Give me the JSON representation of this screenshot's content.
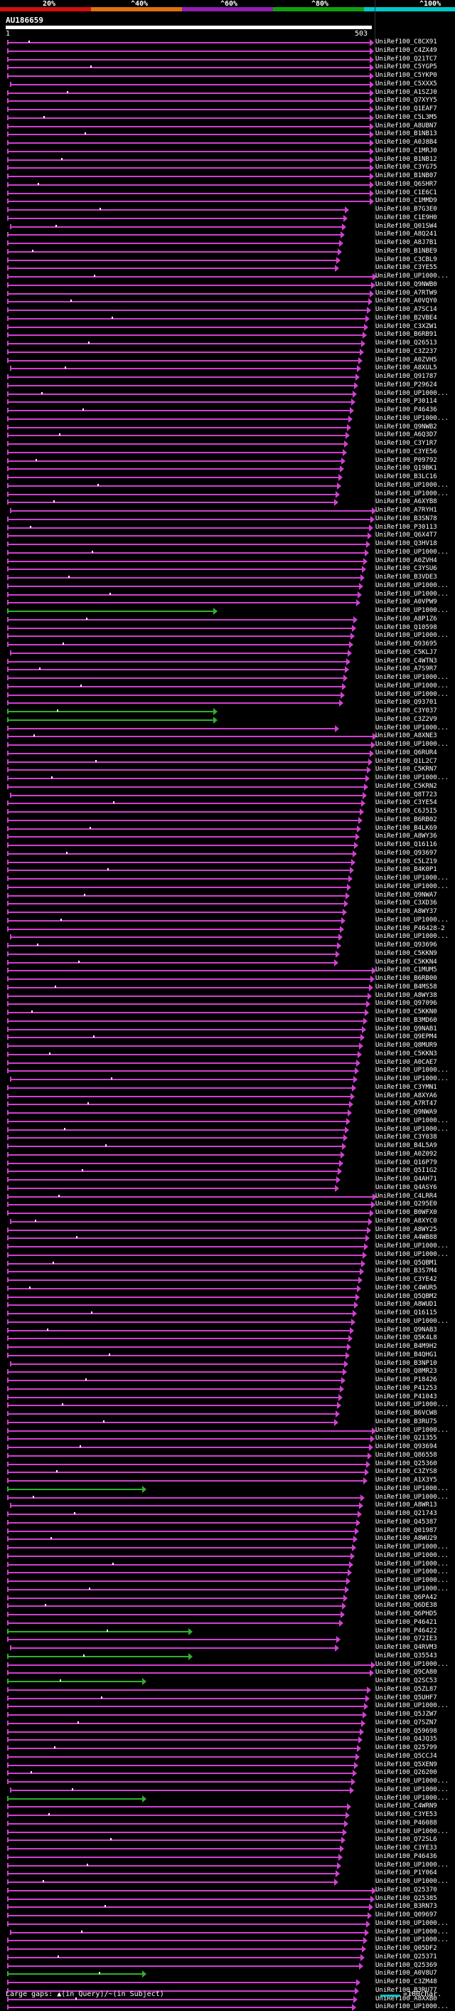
{
  "scale": {
    "labels": [
      "20%",
      "^40%",
      "^60%",
      "^80%",
      "^100%"
    ],
    "colors": [
      "#d01010",
      "#e07010",
      "#9020b0",
      "#10a010",
      "#00c8c8"
    ]
  },
  "query": {
    "id": "AU186659",
    "start": "1",
    "end": "503"
  },
  "hit_colors": {
    "high": "#d040d0",
    "low": "#30b030"
  },
  "hits": [
    "UniRef100_C8CX91",
    "UniRef100_C4ZX49",
    "UniRef100_Q21TC7",
    "UniRef100_C5YGP5",
    "UniRef100_C5YKP0",
    "UniRef100_C5XXX5",
    "UniRef100_A1SZJ0",
    "UniRef100_Q7XYY5",
    "UniRef100_Q1EAF7",
    "UniRef100_C5L3M5",
    "UniRef100_A8UBN7",
    "UniRef100_B1NB13",
    "UniRef100_A0J8B4",
    "UniRef100_C1MRJ0",
    "UniRef100_B1NB12",
    "UniRef100_C3YG75",
    "UniRef100_B1NB07",
    "UniRef100_Q6SHR7",
    "UniRef100_C1E6C1",
    "UniRef100_C1MMD9",
    "UniRef100_B7G3E0",
    "UniRef100_C1E9H0",
    "UniRef100_Q01SW4",
    "UniRef100_A8Q241",
    "UniRef100_A8J7B1",
    "UniRef100_B1NBE9",
    "UniRef100_C3CBL9",
    "UniRef100_C3YE55",
    "UniRef100_UP1000...",
    "UniRef100_Q9NWB0",
    "UniRef100_A7RTW9",
    "UniRef100_A0VQY0",
    "UniRef100_A7SC14",
    "UniRef100_B2VBE4",
    "UniRef100_C3XZW1",
    "UniRef100_B6RB91",
    "UniRef100_Q26513",
    "UniRef100_C3Z237",
    "UniRef100_A0ZVH5",
    "UniRef100_A8XUL5",
    "UniRef100_Q91787",
    "UniRef100_P29624",
    "UniRef100_UP1000...",
    "UniRef100_P30114",
    "UniRef100_P46436",
    "UniRef100_UP1000...",
    "UniRef100_Q9NWB2",
    "UniRef100_A6Q3D7",
    "UniRef100_C3Y1R7",
    "UniRef100_C3YE56",
    "UniRef100_P09792",
    "UniRef100_Q19BK1",
    "UniRef100_B3LC16",
    "UniRef100_UP1000...",
    "UniRef100_UP1000...",
    "UniRef100_A6XYB8",
    "UniRef100_A7RYH1",
    "UniRef100_B3SN78",
    "UniRef100_P30113",
    "UniRef100_Q6X4T7",
    "UniRef100_Q3HV18",
    "UniRef100_UP1000...",
    "UniRef100_A0ZVH4",
    "UniRef100_C3YSU6",
    "UniRef100_B3VDE3",
    "UniRef100_UP1000...",
    "UniRef100_UP1000...",
    "UniRef100_A0VPW9",
    "UniRef100_UP1000...",
    "UniRef100_A8P1Z6",
    "UniRef100_Q10598",
    "UniRef100_UP1000...",
    "UniRef100_Q93695",
    "UniRef100_C5KLJ7",
    "UniRef100_C4WTN3",
    "UniRef100_A7S9R7",
    "UniRef100_UP1000...",
    "UniRef100_UP1000...",
    "UniRef100_UP1000...",
    "UniRef100_Q93701",
    "UniRef100_C3Y037",
    "UniRef100_C3Z2V9",
    "UniRef100_UP1000...",
    "UniRef100_A8XNE3",
    "UniRef100_UP1000...",
    "UniRef100_Q6RUR4",
    "UniRef100_Q1L2C7",
    "UniRef100_C5KRN7",
    "UniRef100_UP1000...",
    "UniRef100_C5KRN2",
    "UniRef100_Q8T723",
    "UniRef100_C3YE54",
    "UniRef100_C6J5I5",
    "UniRef100_B6RB02",
    "UniRef100_B4LK69",
    "UniRef100_A8WY36",
    "UniRef100_Q16116",
    "UniRef100_Q93697",
    "UniRef100_C5LZ19",
    "UniRef100_B4K0P1",
    "UniRef100_UP1000...",
    "UniRef100_UP1000...",
    "UniRef100_Q9NWA7",
    "UniRef100_C3XD36",
    "UniRef100_A8WY37",
    "UniRef100_UP1000...",
    "UniRef100_P46428-2",
    "UniRef100_UP1000...",
    "UniRef100_Q93696",
    "UniRef100_C5KKN9",
    "UniRef100_C5KKN4",
    "UniRef100_C1MUM5",
    "UniRef100_B6RB00",
    "UniRef100_B4MS58",
    "UniRef100_A8WY38",
    "UniRef100_Q97096",
    "UniRef100_C5KKN0",
    "UniRef100_B3MD60",
    "UniRef100_Q9NAB1",
    "UniRef100_Q9EPM4",
    "UniRef100_Q8MUR9",
    "UniRef100_C5KKN3",
    "UniRef100_A0CAE7",
    "UniRef100_UP1000...",
    "UniRef100_UP1000...",
    "UniRef100_C3YMN1",
    "UniRef100_A8XYA6",
    "UniRef100_A7RT47",
    "UniRef100_Q9NWA9",
    "UniRef100_UP1000...",
    "UniRef100_UP1000...",
    "UniRef100_C3Y038",
    "UniRef100_B4L5A9",
    "UniRef100_A0Z092",
    "UniRef100_Q16P79",
    "UniRef100_Q5I1G2",
    "UniRef100_Q4AH71",
    "UniRef100_Q4ASY6",
    "UniRef100_C4LRR4",
    "UniRef100_Q295E0",
    "UniRef100_B0WFX0",
    "UniRef100_A8XYC0",
    "UniRef100_A8WY25",
    "UniRef100_A4WB88",
    "UniRef100_UP1000...",
    "UniRef100_UP1000...",
    "UniRef100_Q5QBM1",
    "UniRef100_B3S7M4",
    "UniRef100_C3YE42",
    "UniRef100_C4WUR5",
    "UniRef100_Q5QBM2",
    "UniRef100_A8WUD1",
    "UniRef100_Q16115",
    "UniRef100_UP1000...",
    "UniRef100_Q9NAB3",
    "UniRef100_Q5K4L8",
    "UniRef100_B4M9H2",
    "UniRef100_B4QHG1",
    "UniRef100_B3NP10",
    "UniRef100_Q8MR23",
    "UniRef100_P18426",
    "UniRef100_P41253",
    "UniRef100_P41043",
    "UniRef100_UP1000...",
    "UniRef100_B6VCW8",
    "UniRef100_B3RU75",
    "UniRef100_UP1000...",
    "UniRef100_Q21355",
    "UniRef100_Q93694",
    "UniRef100_Q86558",
    "UniRef100_Q25360",
    "UniRef100_C3ZYS8",
    "UniRef100_A1X3Y5",
    "UniRef100_UP1000...",
    "UniRef100_UP1000...",
    "UniRef100_A8WR13",
    "UniRef100_Q21743",
    "UniRef100_Q45387",
    "UniRef100_Q01987",
    "UniRef100_A8WU29",
    "UniRef100_UP1000...",
    "UniRef100_UP1000...",
    "UniRef100_UP1000...",
    "UniRef100_UP1000...",
    "UniRef100_UP1000...",
    "UniRef100_UP1000...",
    "UniRef100_Q6PA42",
    "UniRef100_Q6DE38",
    "UniRef100_Q6PHD5",
    "UniRef100_P46421",
    "UniRef100_P46422",
    "UniRef100_Q72IE3",
    "UniRef100_Q4RVM3",
    "UniRef100_Q35543",
    "UniRef100_UP1000...",
    "UniRef100_Q9CA80",
    "UniRef100_Q2SC53",
    "UniRef100_Q5ZL87",
    "UniRef100_Q5UHF7",
    "UniRef100_UP1000...",
    "UniRef100_Q5JZW7",
    "UniRef100_Q7SZN7",
    "UniRef100_Q59698",
    "UniRef100_Q4JQ35",
    "UniRef100_Q25799",
    "UniRef100_Q5CCJ4",
    "UniRef100_Q5XEN9",
    "UniRef100_Q26200",
    "UniRef100_UP1000...",
    "UniRef100_UP1000...",
    "UniRef100_UP1000...",
    "UniRef100_C4WRN9",
    "UniRef100_C3YE53",
    "UniRef100_P46088",
    "UniRef100_UP1000...",
    "UniRef100_Q72SL6",
    "UniRef100_C3YE33",
    "UniRef100_P46436",
    "UniRef100_UP1000...",
    "UniRef100_P1Y064",
    "UniRef100_UP1000...",
    "UniRef100_Q25370",
    "UniRef100_Q25385",
    "UniRef100_B3RN73",
    "UniRef100_Q09697",
    "UniRef100_UP1000...",
    "UniRef100_UP1000...",
    "UniRef100_UP1000...",
    "UniRef100_Q05DF2",
    "UniRef100_Q25371",
    "UniRef100_Q25369",
    "UniRef100_A0V8U7",
    "UniRef100_C3ZM48",
    "UniRef100_B3RU77",
    "UniRef100_A8XXB0",
    "UniRef100_UP1000..."
  ],
  "footer": {
    "gaps_text": "Large gaps: ▲(in Query)/~(in Subject)",
    "legend_text": "=100char."
  }
}
